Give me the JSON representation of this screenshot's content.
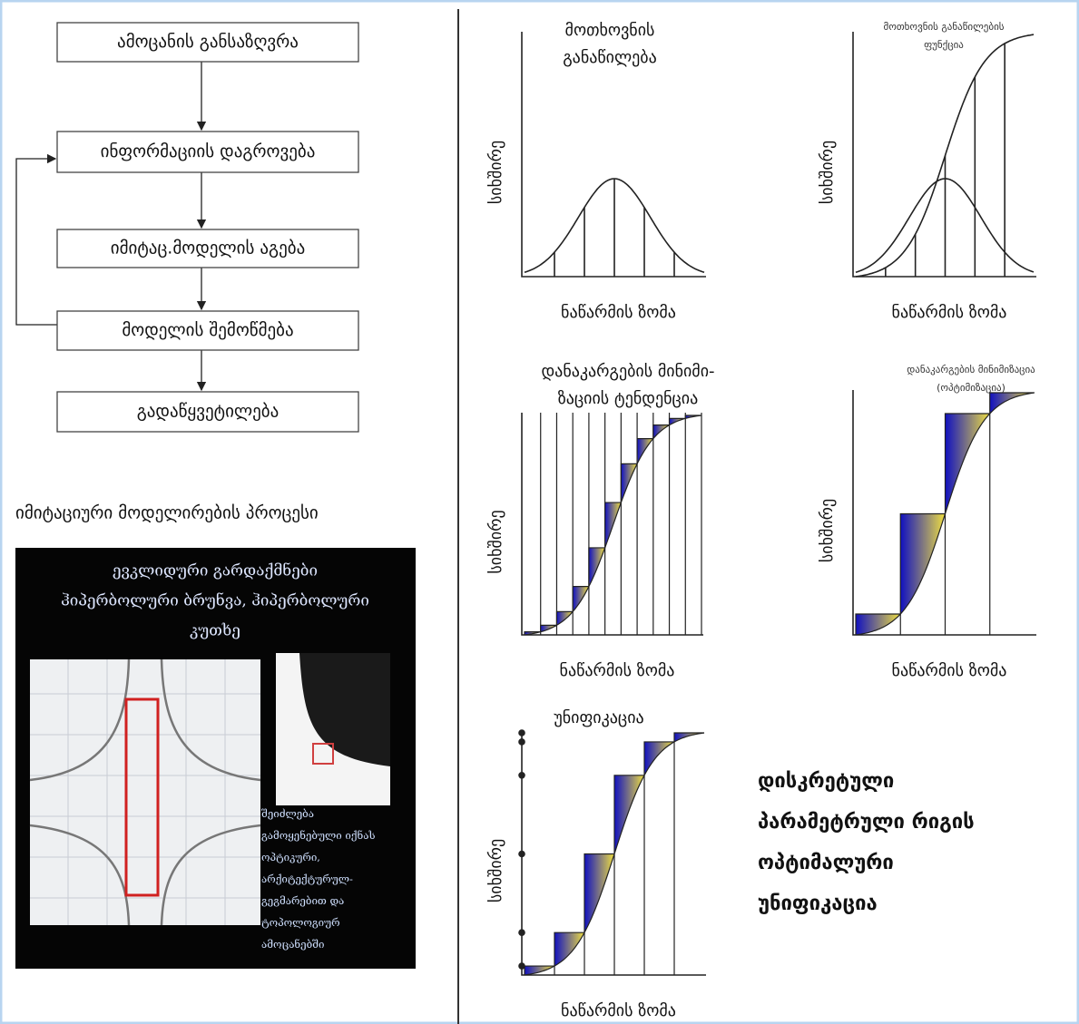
{
  "flowchart": {
    "steps": [
      "ამოცანის განსაზღვრა",
      "ინფორმაციის დაგროვება",
      "იმიტაც.მოდელის აგება",
      "მოდელის შემოწმება",
      "გადაწყვეტილება"
    ],
    "caption": "იმიტაციური მოდელირების პროცესი"
  },
  "image_panel": {
    "title_lines": [
      "ევკლიდური გარდაქმნები",
      "ჰიპერბოლური ბრუნვა, ჰიპერბოლური",
      "კუთხე"
    ],
    "side_note_lines": [
      "შეიძლება",
      "გამოყენებული იქნას",
      "ოპტიკური,",
      "არქიტექტურულ-",
      "გეგმარებით და",
      "ტოპოლოგიურ",
      "ამოცანებში"
    ]
  },
  "diagrams": [
    {
      "title_lines": [
        "მოთხოვნის",
        "განაწილება"
      ],
      "y_label": "სიხშირე",
      "x_label": "ნაწარმის ზომა"
    },
    {
      "title_lines": [
        "მოთხოვნის განაწილების",
        "ფუნქცია"
      ],
      "y_label": "სიხშირე",
      "x_label": "ნაწარმის ზომა"
    },
    {
      "title_lines": [
        "დანაკარგების მინიმი-",
        "ზაციის ტენდენცია"
      ],
      "y_label": "სიხშირე",
      "x_label": "ნაწარმის ზომა"
    },
    {
      "title_lines": [
        "დანაკარგების მინიმიზაცია",
        "(ოპტიმიზაცია)"
      ],
      "y_label": "სიხშირე",
      "x_label": "ნაწარმის ზომა"
    },
    {
      "title_lines": [
        "უნიფიკაცია"
      ],
      "y_label": "სიხშირე",
      "x_label": "ნაწარმის ზომა"
    }
  ],
  "conclusion_lines": [
    "დისკრეტული",
    "პარამეტრული რიგის",
    "ოპტიმალური",
    "უნიფიკაცია"
  ]
}
